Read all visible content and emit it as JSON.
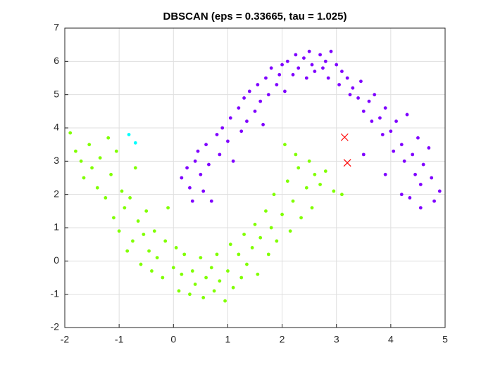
{
  "chart_data": {
    "type": "scatter",
    "title": "DBSCAN (eps = 0.33665, tau = 1.025)",
    "xlim": [
      -2,
      5
    ],
    "xticks": [
      -2,
      -1,
      0,
      1,
      2,
      3,
      4,
      5
    ],
    "ylim": [
      -2,
      7
    ],
    "yticks": [
      -2,
      -1,
      0,
      1,
      2,
      3,
      4,
      5,
      6,
      7
    ],
    "grid": true,
    "series": [
      {
        "color": "#7f00ff",
        "marker": "dot",
        "x": [
          0.15,
          0.3,
          0.25,
          0.4,
          0.5,
          0.45,
          0.6,
          0.55,
          0.7,
          0.65,
          0.8,
          0.85,
          0.9,
          1.0,
          1.05,
          1.1,
          1.2,
          1.25,
          1.3,
          1.35,
          1.4,
          1.5,
          1.55,
          1.6,
          1.7,
          1.75,
          1.8,
          1.9,
          1.95,
          2.0,
          2.05,
          2.1,
          2.2,
          2.25,
          2.3,
          2.4,
          2.45,
          2.5,
          2.55,
          2.6,
          2.7,
          2.75,
          2.8,
          2.85,
          2.9,
          3.0,
          3.05,
          3.1,
          3.2,
          3.25,
          3.3,
          3.4,
          3.45,
          3.5,
          3.6,
          3.65,
          3.7,
          3.8,
          3.85,
          3.9,
          4.0,
          4.05,
          4.1,
          4.2,
          4.25,
          4.3,
          4.4,
          4.45,
          4.5,
          4.55,
          4.6,
          4.7,
          4.75,
          4.8,
          4.9,
          4.35,
          4.55,
          4.2,
          3.9,
          3.5,
          0.35,
          1.65
        ],
        "y": [
          2.5,
          2.2,
          2.8,
          3.0,
          2.6,
          3.3,
          3.5,
          2.1,
          1.8,
          2.9,
          3.8,
          3.2,
          4.0,
          3.6,
          4.3,
          3.0,
          4.6,
          3.9,
          4.9,
          4.2,
          5.1,
          4.5,
          5.3,
          4.8,
          5.5,
          5.0,
          5.8,
          5.3,
          5.6,
          5.9,
          5.1,
          6.0,
          5.6,
          6.2,
          5.8,
          6.1,
          5.5,
          6.3,
          5.9,
          5.7,
          6.2,
          5.8,
          6.0,
          5.5,
          6.3,
          5.9,
          5.3,
          5.7,
          5.5,
          5.0,
          5.2,
          4.9,
          5.4,
          4.5,
          4.8,
          4.2,
          5.0,
          4.3,
          3.8,
          4.6,
          3.9,
          3.3,
          4.2,
          3.5,
          3.0,
          4.4,
          3.2,
          2.6,
          3.7,
          2.3,
          2.9,
          3.4,
          2.5,
          1.8,
          2.1,
          1.9,
          1.6,
          2.0,
          2.6,
          3.2,
          1.8,
          4.1
        ]
      },
      {
        "color": "#80ff00",
        "marker": "dot",
        "x": [
          -1.9,
          -1.8,
          -1.7,
          -1.65,
          -1.55,
          -1.5,
          -1.4,
          -1.35,
          -1.25,
          -1.2,
          -1.15,
          -1.1,
          -1.05,
          -1.0,
          -0.95,
          -0.9,
          -0.85,
          -0.8,
          -0.75,
          -0.7,
          -0.65,
          -0.6,
          -0.55,
          -0.5,
          -0.45,
          -0.4,
          -0.35,
          -0.3,
          -0.2,
          -0.15,
          -0.1,
          0.0,
          0.05,
          0.1,
          0.15,
          0.2,
          0.3,
          0.35,
          0.4,
          0.5,
          0.55,
          0.6,
          0.7,
          0.75,
          0.8,
          0.85,
          0.95,
          1.0,
          1.05,
          1.1,
          1.2,
          1.25,
          1.3,
          1.35,
          1.45,
          1.5,
          1.55,
          1.6,
          1.7,
          1.75,
          1.8,
          1.85,
          1.9,
          2.0,
          2.05,
          2.1,
          2.15,
          2.2,
          2.25,
          2.3,
          2.35,
          2.45,
          2.5,
          2.55,
          2.6,
          2.7,
          2.8,
          2.95,
          3.1
        ],
        "y": [
          3.85,
          3.3,
          3.0,
          2.5,
          3.5,
          2.8,
          2.2,
          3.1,
          1.9,
          3.7,
          2.6,
          1.3,
          3.3,
          0.9,
          2.1,
          1.6,
          0.3,
          1.9,
          0.6,
          2.8,
          1.2,
          -0.1,
          0.8,
          1.5,
          0.3,
          -0.3,
          0.9,
          0.1,
          -0.5,
          0.6,
          1.6,
          -0.2,
          0.4,
          -0.9,
          -0.4,
          0.2,
          -1.0,
          -0.3,
          -0.7,
          0.1,
          -1.1,
          -0.5,
          -0.2,
          -0.9,
          0.2,
          -0.6,
          -1.2,
          -0.3,
          0.5,
          -0.8,
          0.2,
          -0.5,
          0.8,
          -0.1,
          0.4,
          1.1,
          -0.4,
          0.7,
          1.5,
          0.2,
          1.0,
          2.0,
          0.6,
          1.4,
          3.5,
          2.4,
          0.9,
          1.8,
          3.2,
          2.8,
          1.3,
          2.2,
          3.0,
          1.6,
          2.6,
          2.3,
          2.7,
          2.1,
          2.0
        ]
      },
      {
        "color": "#00ffff",
        "marker": "dot",
        "x": [
          -0.82,
          -0.7
        ],
        "y": [
          3.8,
          3.55
        ]
      },
      {
        "color": "#ff0000",
        "marker": "x",
        "x": [
          3.15,
          3.2
        ],
        "y": [
          3.72,
          2.95
        ]
      }
    ]
  }
}
